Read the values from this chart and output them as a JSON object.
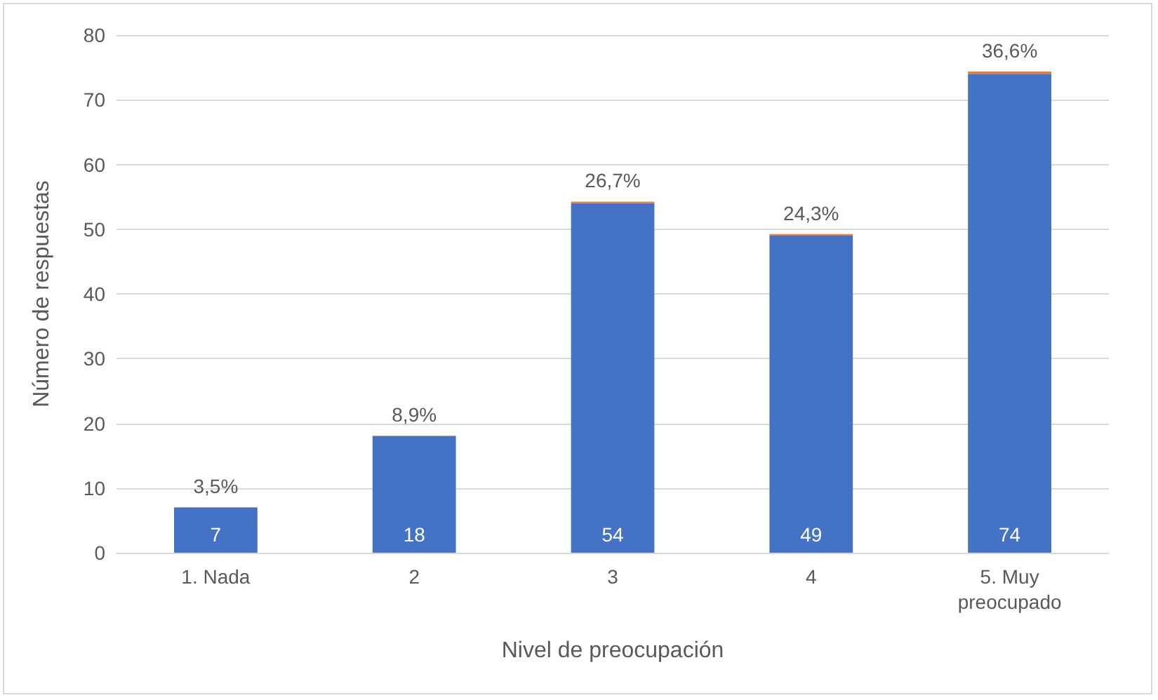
{
  "chart_data": {
    "type": "bar",
    "xlabel": "Nivel de preocupación",
    "ylabel": "Número de respuestas",
    "categories": [
      "1. Nada",
      "2",
      "3",
      "4",
      "5. Muy\npreocupado"
    ],
    "stacked": true,
    "series": [
      {
        "color": "#4472c4",
        "values": [
          7,
          18,
          54,
          49,
          74
        ],
        "value_labels": [
          "7",
          "18",
          "54",
          "49",
          "74"
        ]
      },
      {
        "color": "#ed7d31",
        "values": [
          0.035,
          0.089,
          0.267,
          0.243,
          0.366
        ],
        "value_labels": [
          "3,5%",
          "8,9%",
          "26,7%",
          "24,3%",
          "36,6%"
        ]
      }
    ],
    "ylim": [
      0,
      80
    ],
    "yticks": [
      0,
      10,
      20,
      30,
      40,
      50,
      60,
      70,
      80
    ],
    "grid": "y"
  }
}
